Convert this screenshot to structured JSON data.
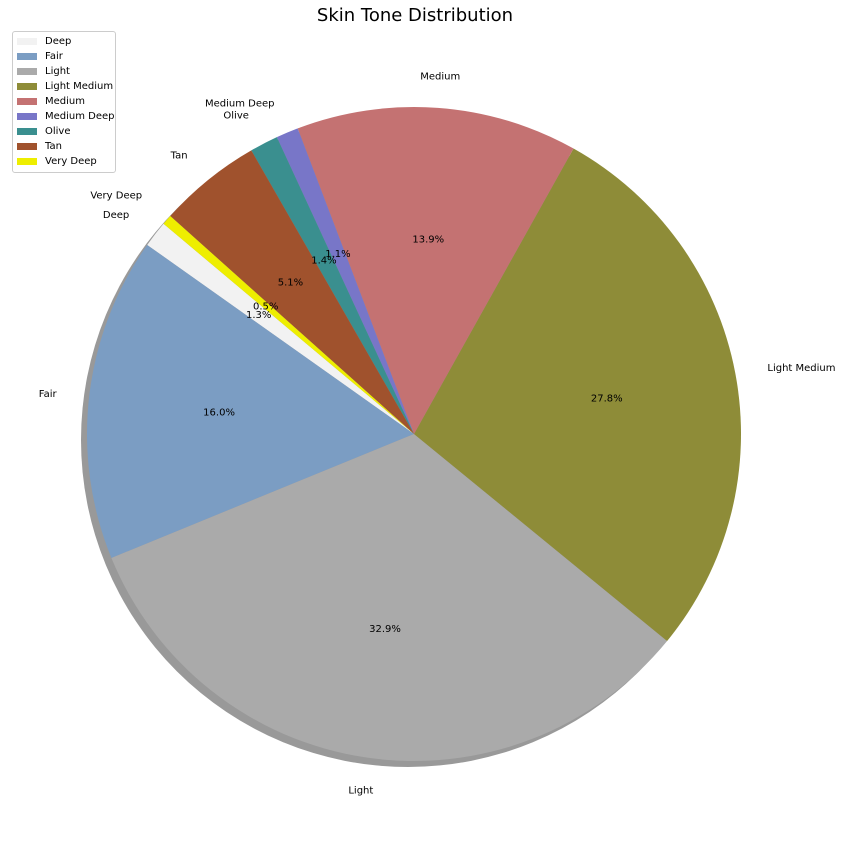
{
  "chart_data": {
    "type": "pie",
    "title": "Skin Tone Distribution",
    "shadow": true,
    "legend_position": "top-left",
    "labels": [
      "Deep",
      "Fair",
      "Light",
      "Light Medium",
      "Medium",
      "Medium Deep",
      "Olive",
      "Tan",
      "Very Deep"
    ],
    "values": [
      1.3,
      16.0,
      32.9,
      27.8,
      13.9,
      1.1,
      1.4,
      5.1,
      0.5
    ],
    "percent_labels": [
      "1.3%",
      "16.0%",
      "32.9%",
      "27.8%",
      "13.9%",
      "1.1%",
      "1.4%",
      "5.1%",
      "0.5%"
    ],
    "colors": [
      "#f2f2f2",
      "#7b9dc3",
      "#aaaaaa",
      "#8e8c38",
      "#c47272",
      "#7876c8",
      "#3a8f8f",
      "#a0522d",
      "#eeee00"
    ],
    "start_angle_deg": 140,
    "direction": "counterclockwise"
  }
}
